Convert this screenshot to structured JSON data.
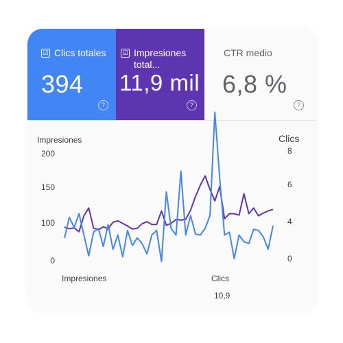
{
  "metrics": {
    "clicks": {
      "label": "Clics totales",
      "value": "394",
      "checked": true,
      "color": "#4285f4",
      "help": "?"
    },
    "impressions": {
      "label_line1": "Impresiones",
      "label_line2": "total...",
      "value": "11,9 mil",
      "checked": true,
      "color": "#5e35b1",
      "help": "?"
    },
    "ctr": {
      "label": "CTR medio",
      "value": "6,8 %",
      "help": "?"
    }
  },
  "checkbox_glyph": "☑",
  "chart_data": {
    "type": "line",
    "y_left_label": "Impresiones",
    "y_right_label": "Clics",
    "y_left_ticks": [
      "200",
      "150",
      "100",
      "0"
    ],
    "y_right_ticks": [
      "8",
      "6",
      "4",
      "0"
    ],
    "ylim_left": [
      0,
      200
    ],
    "ylim_right": [
      0,
      8
    ],
    "series": [
      {
        "name": "Impresiones",
        "axis": "left",
        "color": "#5e35b1",
        "values": [
          87,
          83,
          85,
          75,
          109,
          120,
          85,
          80,
          88,
          83,
          100,
          102,
          97,
          90,
          82,
          84,
          96,
          101,
          94,
          94,
          116,
          92,
          97,
          104,
          103,
          104,
          117,
          136,
          152,
          166,
          146,
          130,
          150,
          105,
          112,
          112,
          110,
          140,
          112,
          120,
          109,
          113,
          116,
          118
        ]
      },
      {
        "name": "Clics",
        "axis": "right",
        "color": "#4285f4",
        "values": [
          2.2,
          4.2,
          3.3,
          4.4,
          2.5,
          0.3,
          2.8,
          3.2,
          1.3,
          3.6,
          1.0,
          2.5,
          0.2,
          3.0,
          1.4,
          2.2,
          1.6,
          0.5,
          2.5,
          3.0,
          -0.3,
          5.6,
          3.2,
          2.5,
          6.8,
          2.5,
          4.3,
          2.6,
          2.5,
          3.2,
          4.3,
          10.3,
          6.4,
          2.5,
          2.8,
          0.0,
          2.5,
          1.8,
          1.6,
          3.1,
          3.0,
          2.3,
          1.0,
          3.5
        ]
      }
    ],
    "legend": {
      "left_name": "Impresiones",
      "right_name": "Clics",
      "right_value": "10,9"
    }
  }
}
